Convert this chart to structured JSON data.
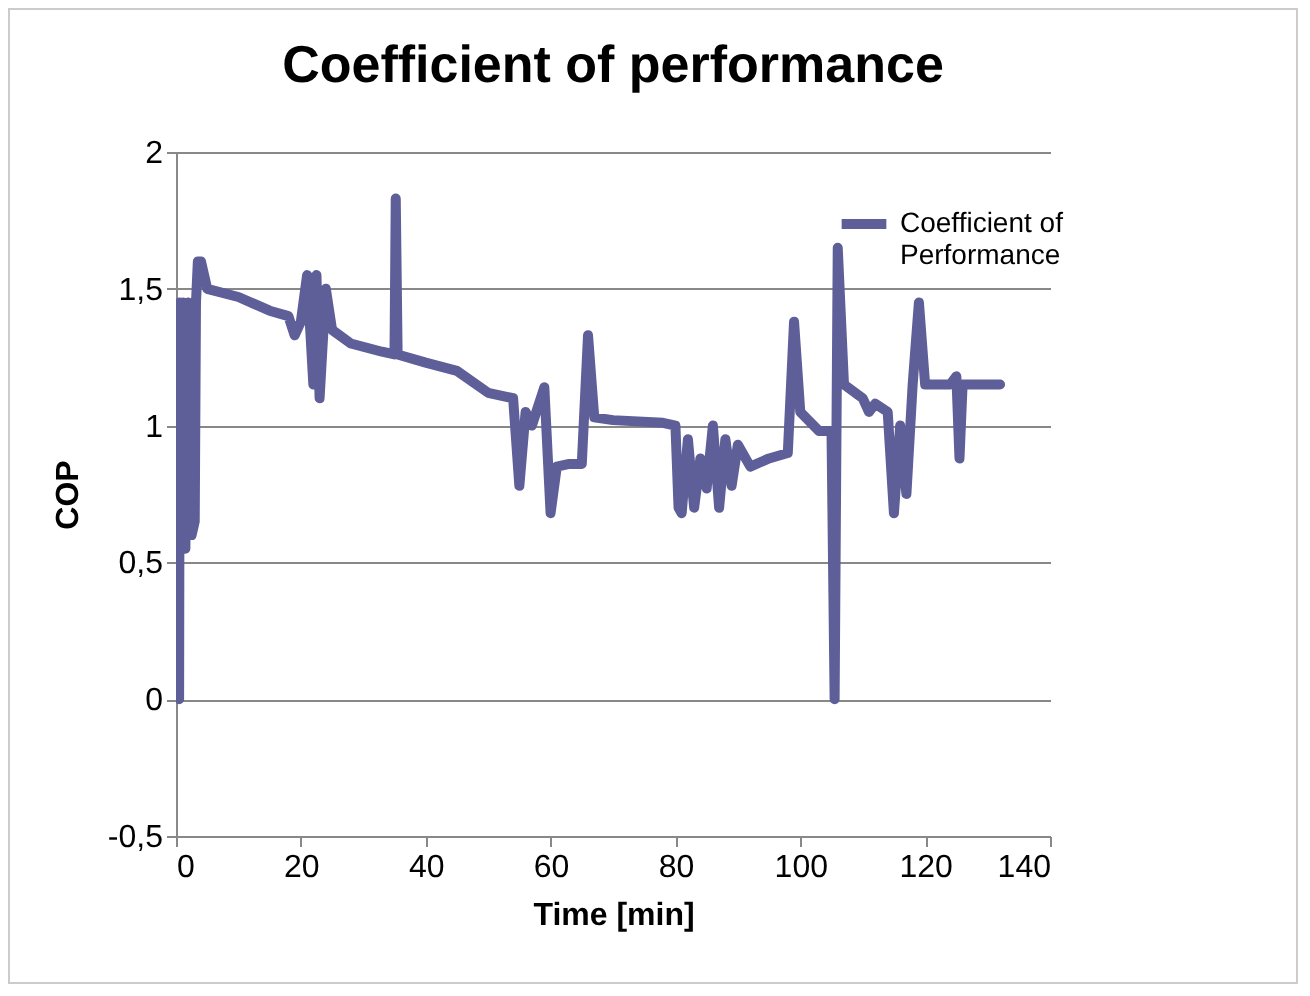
{
  "chart_data": {
    "type": "line",
    "title": "Coefficient of performance",
    "xlabel": "Time [min]",
    "ylabel": "COP",
    "xlim": [
      0,
      140
    ],
    "xticks": [
      0,
      20,
      40,
      60,
      80,
      100,
      120,
      140
    ],
    "ylim": [
      -0.5,
      2
    ],
    "yticks": [
      {
        "value": -0.5,
        "label": "-0,5"
      },
      0,
      {
        "value": 0.5,
        "label": "0,5"
      },
      1,
      {
        "value": 1.5,
        "label": "1,5"
      },
      2
    ],
    "grid": "y",
    "legend": "top right",
    "marker": "none",
    "line_style": "solid",
    "series": [
      {
        "name": "Coefficient of Performance",
        "color": "#5e5e98",
        "x": [
          0.5,
          0.6,
          0.8,
          1.2,
          1.5,
          2,
          2.5,
          3,
          3.2,
          3.5,
          4,
          5,
          10,
          15,
          18,
          19,
          20,
          21,
          22,
          22.5,
          23,
          24,
          25,
          28,
          33,
          35,
          35.2,
          35.5,
          40,
          45,
          50,
          54,
          55,
          56,
          57,
          59,
          60,
          61,
          63,
          65,
          66,
          67,
          70,
          78,
          80,
          80.5,
          81,
          82,
          83,
          84,
          85,
          86,
          87,
          88,
          89,
          90,
          92,
          95,
          98,
          99,
          100,
          103,
          105,
          105.5,
          106,
          107,
          110,
          111,
          112,
          114,
          115,
          116,
          117,
          118,
          119,
          120,
          124,
          125,
          125.5,
          126,
          130,
          132
        ],
        "values": [
          0,
          1.45,
          0.6,
          1.45,
          0.55,
          1.45,
          0.6,
          0.65,
          1.45,
          1.6,
          1.6,
          1.5,
          1.47,
          1.42,
          1.4,
          1.33,
          1.38,
          1.55,
          1.15,
          1.55,
          1.1,
          1.5,
          1.35,
          1.3,
          1.27,
          1.26,
          1.83,
          1.26,
          1.23,
          1.2,
          1.12,
          1.1,
          0.78,
          1.05,
          1,
          1.14,
          0.68,
          0.85,
          0.86,
          0.86,
          1.33,
          1.03,
          1.02,
          1.01,
          1,
          0.7,
          0.68,
          0.95,
          0.7,
          0.88,
          0.77,
          1,
          0.7,
          0.95,
          0.78,
          0.93,
          0.85,
          0.88,
          0.9,
          1.38,
          1.05,
          0.98,
          0.98,
          0,
          1.65,
          1.15,
          1.1,
          1.05,
          1.08,
          1.05,
          0.68,
          1,
          0.75,
          1.15,
          1.45,
          1.15,
          1.15,
          1.18,
          0.88,
          1.15,
          1.15,
          1.15
        ]
      }
    ]
  }
}
